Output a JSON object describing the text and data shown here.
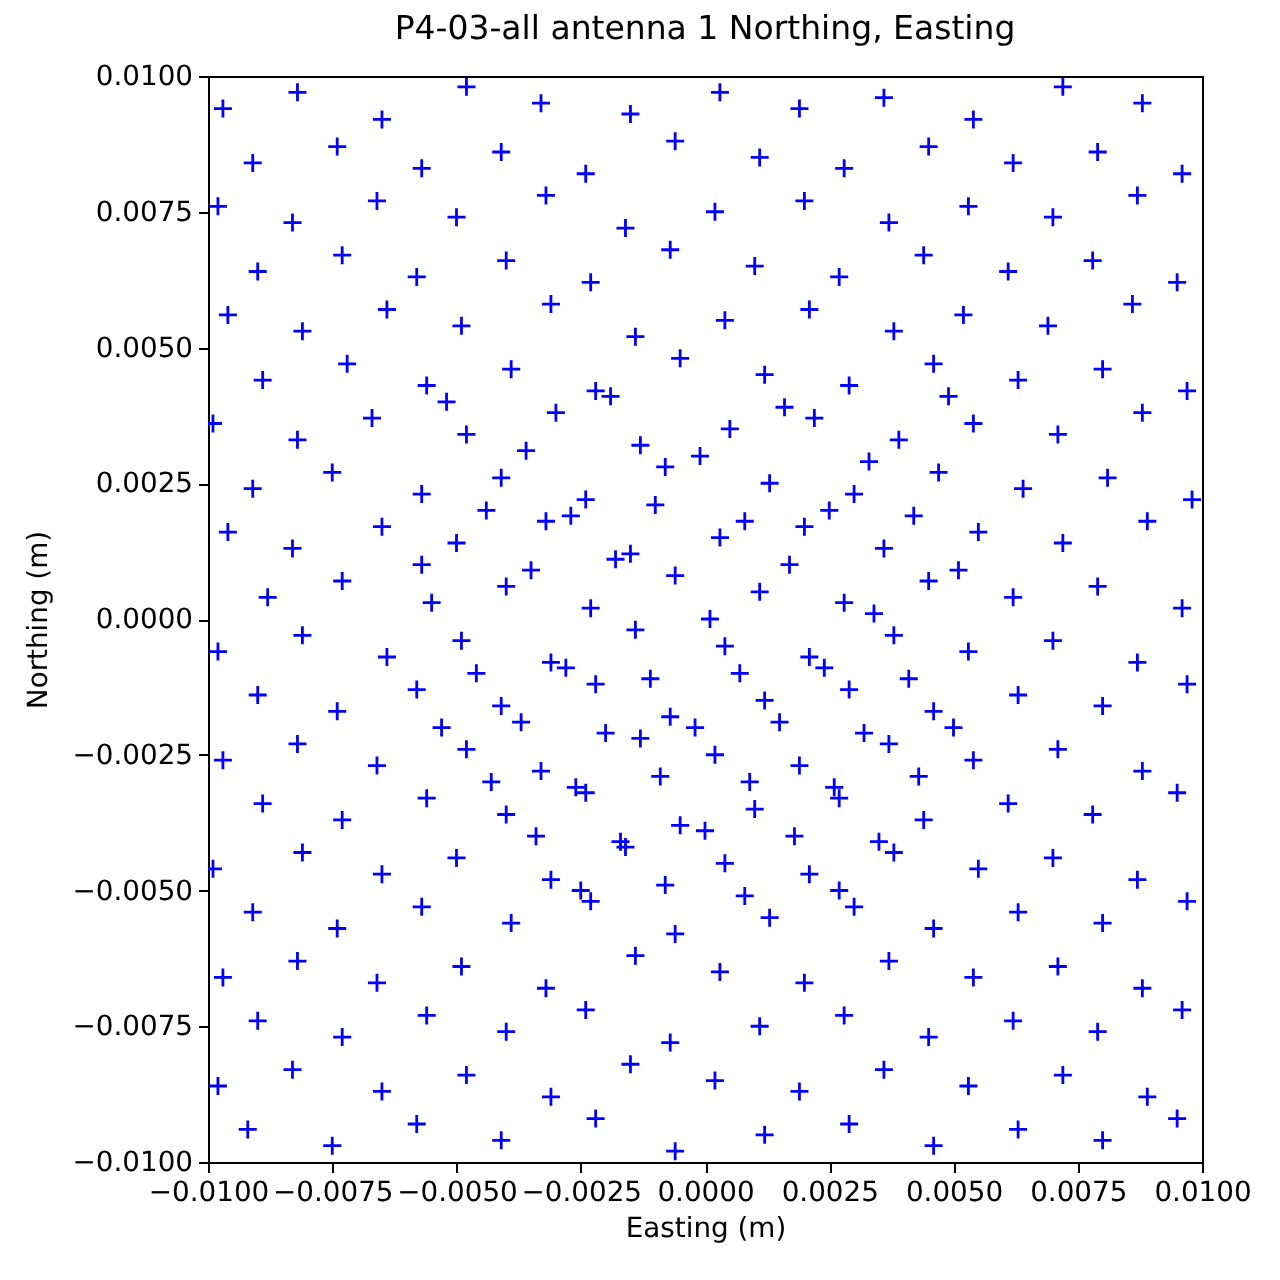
{
  "chart_data": {
    "type": "scatter",
    "title": "P4-03-all antenna 1 Northing, Easting",
    "xlabel": "Easting (m)",
    "ylabel": "Northing (m)",
    "xlim": [
      -0.01,
      0.01
    ],
    "ylim": [
      -0.01,
      0.01
    ],
    "xticks": [
      {
        "value": -0.01,
        "label": "−0.0100"
      },
      {
        "value": -0.0075,
        "label": "−0.0075"
      },
      {
        "value": -0.005,
        "label": "−0.0050"
      },
      {
        "value": -0.0025,
        "label": "−0.0025"
      },
      {
        "value": 0,
        "label": "0.0000"
      },
      {
        "value": 0.0025,
        "label": "0.0025"
      },
      {
        "value": 0.005,
        "label": "0.0050"
      },
      {
        "value": 0.0075,
        "label": "0.0075"
      },
      {
        "value": 0.01,
        "label": "0.0100"
      }
    ],
    "yticks": [
      {
        "value": -0.01,
        "label": "−0.0100"
      },
      {
        "value": -0.0075,
        "label": "−0.0075"
      },
      {
        "value": -0.005,
        "label": "−0.0050"
      },
      {
        "value": -0.0025,
        "label": "−0.0025"
      },
      {
        "value": 0,
        "label": "0.0000"
      },
      {
        "value": 0.0025,
        "label": "0.0025"
      },
      {
        "value": 0.005,
        "label": "0.0050"
      },
      {
        "value": 0.0075,
        "label": "0.0075"
      },
      {
        "value": 0.01,
        "label": "0.0100"
      }
    ],
    "marker": "cross",
    "series": [
      {
        "color": "#0000ff",
        "x": [
          -0.0097,
          -0.0082,
          -0.0065,
          -0.0048,
          -0.0033,
          -0.0015,
          0.0003,
          0.0019,
          0.0036,
          0.0054,
          0.0072,
          0.0088,
          -0.0091,
          -0.0074,
          -0.0057,
          -0.0041,
          -0.0024,
          -0.0006,
          0.0011,
          0.0028,
          0.0045,
          0.0062,
          0.0079,
          0.0096,
          -0.0098,
          -0.0083,
          -0.0066,
          -0.005,
          -0.0032,
          -0.0016,
          0.0002,
          0.002,
          0.0037,
          0.0053,
          0.007,
          0.0087,
          -0.009,
          -0.0073,
          -0.0058,
          -0.004,
          -0.0023,
          -0.0007,
          0.001,
          0.0027,
          0.0044,
          0.0061,
          0.0078,
          0.0095,
          -0.0096,
          -0.0081,
          -0.0064,
          -0.0049,
          -0.0031,
          -0.0014,
          0.0004,
          0.0021,
          0.0038,
          0.0052,
          0.0069,
          0.0086,
          -0.0089,
          -0.0072,
          -0.0056,
          -0.0039,
          -0.0022,
          -0.0005,
          0.0012,
          0.0029,
          0.0046,
          0.0063,
          0.008,
          0.0097,
          -0.0099,
          -0.0082,
          -0.0067,
          -0.0048,
          -0.003,
          -0.0013,
          0.0005,
          0.0022,
          0.0039,
          0.0054,
          0.0071,
          0.0088,
          -0.0091,
          -0.0075,
          -0.0057,
          -0.0041,
          -0.0024,
          -0.0008,
          0.0013,
          0.003,
          0.0047,
          0.0064,
          0.0081,
          0.0098,
          -0.0096,
          -0.0083,
          -0.0065,
          -0.005,
          -0.0032,
          -0.0015,
          0.0003,
          0.002,
          0.0036,
          0.0055,
          0.0072,
          0.0089,
          -0.0088,
          -0.0073,
          -0.0055,
          -0.004,
          -0.0023,
          -0.0006,
          0.0011,
          0.0028,
          0.0045,
          0.0062,
          0.0079,
          0.0096,
          -0.0098,
          -0.0081,
          -0.0064,
          -0.0049,
          -0.0031,
          -0.0014,
          0.0004,
          0.0021,
          0.0038,
          0.0053,
          0.007,
          0.0087,
          -0.009,
          -0.0074,
          -0.0058,
          -0.0041,
          -0.0022,
          -0.0007,
          0.0012,
          0.0029,
          0.0046,
          0.0063,
          0.008,
          0.0097,
          -0.0097,
          -0.0082,
          -0.0066,
          -0.0048,
          -0.0033,
          -0.0013,
          0.0002,
          0.0019,
          0.0037,
          0.0054,
          0.0071,
          0.0088,
          -0.0089,
          -0.0073,
          -0.0056,
          -0.004,
          -0.0024,
          -0.0005,
          0.001,
          0.0027,
          0.0044,
          0.0061,
          0.0078,
          0.0095,
          -0.0099,
          -0.0081,
          -0.0065,
          -0.005,
          -0.0031,
          -0.0016,
          0.0004,
          0.0021,
          0.0038,
          0.0055,
          0.007,
          0.0087,
          -0.0091,
          -0.0074,
          -0.0057,
          -0.0039,
          -0.0023,
          -0.0006,
          0.0013,
          0.003,
          0.0046,
          0.0063,
          0.008,
          0.0097,
          -0.0097,
          -0.0082,
          -0.0066,
          -0.0049,
          -0.0032,
          -0.0014,
          0.0003,
          0.002,
          0.0037,
          0.0054,
          0.0071,
          0.0088,
          -0.009,
          -0.0073,
          -0.0056,
          -0.004,
          -0.0024,
          -0.0007,
          0.0011,
          0.0028,
          0.0045,
          0.0062,
          0.0079,
          0.0096,
          -0.0098,
          -0.0083,
          -0.0065,
          -0.0048,
          -0.0031,
          -0.0015,
          0.0002,
          0.0019,
          0.0036,
          0.0053,
          0.0072,
          0.0089,
          -0.0092,
          -0.0075,
          -0.0058,
          -0.0041,
          -0.0022,
          -0.0006,
          0.0012,
          0.0029,
          0.0046,
          0.0063,
          0.008,
          0.0095,
          -0.0052,
          -0.0036,
          -0.0019,
          -0.0001,
          0.0016,
          0.0033,
          0.0049,
          -0.0044,
          -0.0027,
          -0.001,
          0.0008,
          0.0025,
          0.0042,
          -0.0057,
          -0.0035,
          -0.0018,
          0.0001,
          0.0017,
          0.0034,
          0.0051,
          -0.0046,
          -0.0028,
          -0.0011,
          0.0007,
          0.0024,
          0.0041,
          -0.0053,
          -0.0037,
          -0.002,
          -0.0002,
          0.0015,
          0.0032,
          0.005,
          -0.0043,
          -0.0026,
          -0.0009,
          0.0009,
          0.0026,
          0.0043,
          -0.0034,
          -0.0017,
          0.0,
          0.0018,
          0.0035,
          -0.0025,
          -0.0008,
          0.0008,
          0.0027
        ],
        "values": [
          0.0094,
          0.0097,
          0.0092,
          0.0098,
          0.0095,
          0.0093,
          0.0097,
          0.0094,
          0.0096,
          0.0092,
          0.0098,
          0.0095,
          0.0084,
          0.0087,
          0.0083,
          0.0086,
          0.0082,
          0.0088,
          0.0085,
          0.0083,
          0.0087,
          0.0084,
          0.0086,
          0.0082,
          0.0076,
          0.0073,
          0.0077,
          0.0074,
          0.0078,
          0.0072,
          0.0075,
          0.0077,
          0.0073,
          0.0076,
          0.0074,
          0.0078,
          0.0064,
          0.0067,
          0.0063,
          0.0066,
          0.0062,
          0.0068,
          0.0065,
          0.0063,
          0.0067,
          0.0064,
          0.0066,
          0.0062,
          0.0056,
          0.0053,
          0.0057,
          0.0054,
          0.0058,
          0.0052,
          0.0055,
          0.0057,
          0.0053,
          0.0056,
          0.0054,
          0.0058,
          0.0044,
          0.0047,
          0.0043,
          0.0046,
          0.0042,
          0.0048,
          0.0045,
          0.0043,
          0.0047,
          0.0044,
          0.0046,
          0.0042,
          0.0036,
          0.0033,
          0.0037,
          0.0034,
          0.0038,
          0.0032,
          0.0035,
          0.0037,
          0.0033,
          0.0036,
          0.0034,
          0.0038,
          0.0024,
          0.0027,
          0.0023,
          0.0026,
          0.0022,
          0.0028,
          0.0025,
          0.0023,
          0.0027,
          0.0024,
          0.0026,
          0.0022,
          0.0016,
          0.0013,
          0.0017,
          0.0014,
          0.0018,
          0.0012,
          0.0015,
          0.0017,
          0.0013,
          0.0016,
          0.0014,
          0.0018,
          0.0004,
          0.0007,
          0.0003,
          0.0006,
          0.0002,
          0.0008,
          0.0005,
          0.0003,
          0.0007,
          0.0004,
          0.0006,
          0.0002,
          -0.0006,
          -0.0003,
          -0.0007,
          -0.0004,
          -0.0008,
          -0.0002,
          -0.0005,
          -0.0007,
          -0.0003,
          -0.0006,
          -0.0004,
          -0.0008,
          -0.0014,
          -0.0017,
          -0.0013,
          -0.0016,
          -0.0012,
          -0.0018,
          -0.0015,
          -0.0013,
          -0.0017,
          -0.0014,
          -0.0016,
          -0.0012,
          -0.0026,
          -0.0023,
          -0.0027,
          -0.0024,
          -0.0028,
          -0.0022,
          -0.0025,
          -0.0027,
          -0.0023,
          -0.0026,
          -0.0024,
          -0.0028,
          -0.0034,
          -0.0037,
          -0.0033,
          -0.0036,
          -0.0032,
          -0.0038,
          -0.0035,
          -0.0033,
          -0.0037,
          -0.0034,
          -0.0036,
          -0.0032,
          -0.0046,
          -0.0043,
          -0.0047,
          -0.0044,
          -0.0048,
          -0.0042,
          -0.0045,
          -0.0047,
          -0.0043,
          -0.0046,
          -0.0044,
          -0.0048,
          -0.0054,
          -0.0057,
          -0.0053,
          -0.0056,
          -0.0052,
          -0.0058,
          -0.0055,
          -0.0053,
          -0.0057,
          -0.0054,
          -0.0056,
          -0.0052,
          -0.0066,
          -0.0063,
          -0.0067,
          -0.0064,
          -0.0068,
          -0.0062,
          -0.0065,
          -0.0067,
          -0.0063,
          -0.0066,
          -0.0064,
          -0.0068,
          -0.0074,
          -0.0077,
          -0.0073,
          -0.0076,
          -0.0072,
          -0.0078,
          -0.0075,
          -0.0073,
          -0.0077,
          -0.0074,
          -0.0076,
          -0.0072,
          -0.0086,
          -0.0083,
          -0.0087,
          -0.0084,
          -0.0088,
          -0.0082,
          -0.0085,
          -0.0087,
          -0.0083,
          -0.0086,
          -0.0084,
          -0.0088,
          -0.0094,
          -0.0097,
          -0.0093,
          -0.0096,
          -0.0092,
          -0.0098,
          -0.0095,
          -0.0093,
          -0.0097,
          -0.0094,
          -0.0096,
          -0.0092,
          0.004,
          0.0031,
          0.0041,
          0.003,
          0.0039,
          0.0029,
          0.0041,
          0.002,
          0.0019,
          0.0021,
          0.0018,
          0.002,
          0.0019,
          0.001,
          0.0009,
          0.0011,
          0.0,
          0.001,
          0.0001,
          0.0009,
          -0.001,
          -0.0009,
          -0.0011,
          -0.001,
          -0.0009,
          -0.0011,
          -0.002,
          -0.0019,
          -0.0021,
          -0.002,
          -0.0019,
          -0.0021,
          -0.002,
          -0.003,
          -0.0031,
          -0.0029,
          -0.003,
          -0.0031,
          -0.0029,
          -0.004,
          -0.0041,
          -0.0039,
          -0.004,
          -0.0041,
          -0.005,
          -0.0049,
          -0.0051,
          -0.005
        ]
      }
    ]
  }
}
